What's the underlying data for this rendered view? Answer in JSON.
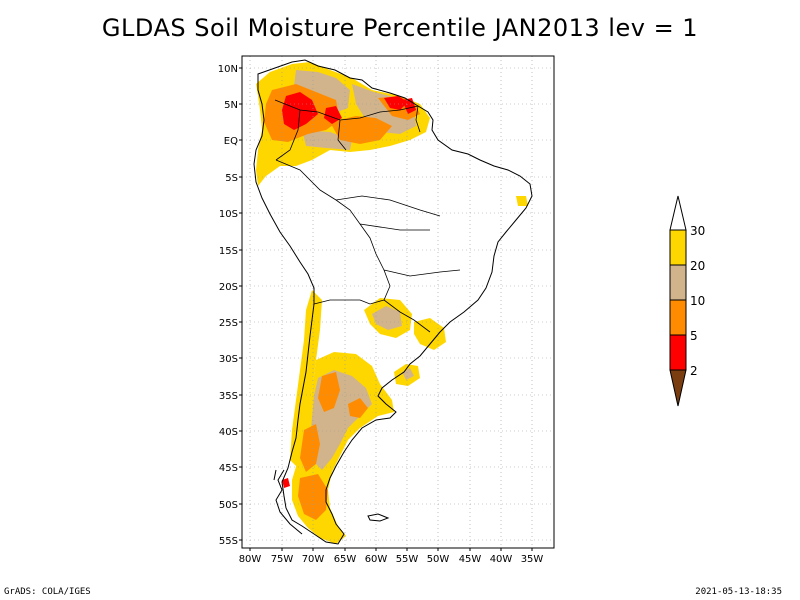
{
  "title": "GLDAS Soil Moisture Percentile JAN2013 lev = 1",
  "footer_left": "GrADS: COLA/IGES",
  "footer_right": "2021-05-13-18:35",
  "map": {
    "lat_labels": [
      "10N",
      "5N",
      "EQ",
      "5S",
      "10S",
      "15S",
      "20S",
      "25S",
      "30S",
      "35S",
      "40S",
      "45S",
      "50S",
      "55S"
    ],
    "lon_labels": [
      "80W",
      "75W",
      "70W",
      "65W",
      "60W",
      "55W",
      "50W",
      "45W",
      "40W",
      "35W"
    ]
  },
  "colorbar": {
    "labels": [
      "2",
      "5",
      "10",
      "20",
      "30"
    ],
    "colors": {
      "below_2": "#7a3d10",
      "2_5": "#ff0000",
      "5_10": "#ff8c00",
      "10_20": "#d2b48c",
      "20_30": "#ffd700",
      "above_30": "#ffffff"
    }
  },
  "colors": {
    "coast": "#000000",
    "grid": "#999999"
  }
}
